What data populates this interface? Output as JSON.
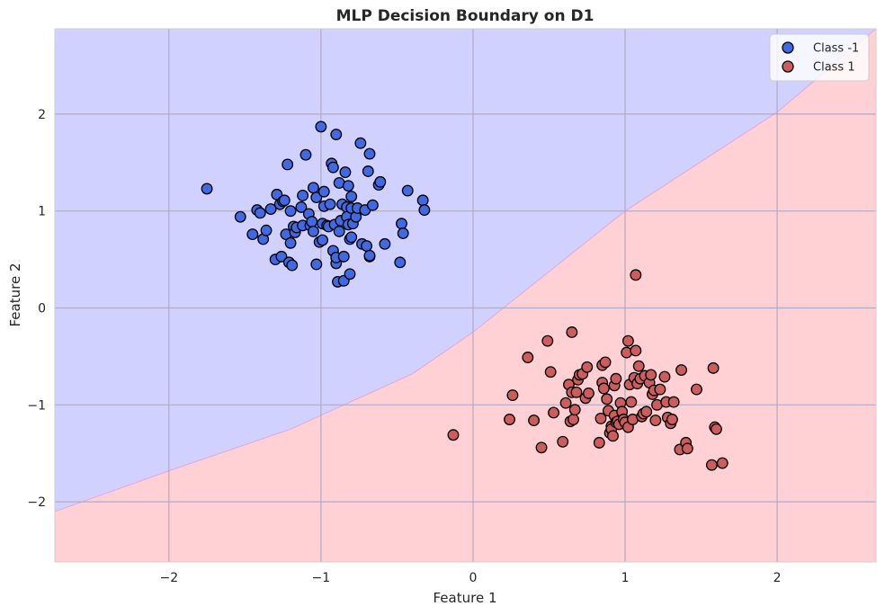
{
  "chart_data": {
    "type": "scatter",
    "title": "MLP Decision Boundary on D1",
    "xlabel": "Feature 1",
    "ylabel": "Feature 2",
    "xlim": [
      -2.75,
      2.65
    ],
    "ylim": [
      -2.62,
      2.88
    ],
    "xticks": [
      -2,
      -1,
      0,
      1,
      2
    ],
    "yticks": [
      -2,
      -1,
      0,
      1,
      2
    ],
    "xtick_labels": [
      "−2",
      "−1",
      "0",
      "1",
      "2"
    ],
    "ytick_labels": [
      "−2",
      "−1",
      "0",
      "1",
      "2"
    ],
    "grid": true,
    "legend_position": "top-right",
    "decision_regions": {
      "class_-1_color": "#d1d1ff",
      "class_1_color": "#ffd1d4",
      "boundary": [
        [
          -2.75,
          -2.1
        ],
        [
          -2.0,
          -1.68
        ],
        [
          -1.2,
          -1.25
        ],
        [
          -0.4,
          -0.68
        ],
        [
          0.0,
          -0.25
        ],
        [
          1.0,
          1.0
        ],
        [
          2.0,
          2.02
        ],
        [
          2.65,
          2.88
        ]
      ]
    },
    "series": [
      {
        "name": "Class -1",
        "color": "#4169e1",
        "points": [
          [
            -1.75,
            1.23
          ],
          [
            -1.53,
            0.94
          ],
          [
            -1.45,
            0.76
          ],
          [
            -1.42,
            1.01
          ],
          [
            -1.4,
            0.98
          ],
          [
            -1.38,
            0.71
          ],
          [
            -1.36,
            0.8
          ],
          [
            -1.33,
            1.02
          ],
          [
            -1.3,
            0.5
          ],
          [
            -1.29,
            1.17
          ],
          [
            -1.27,
            1.07
          ],
          [
            -1.26,
            0.53
          ],
          [
            -1.25,
            1.1
          ],
          [
            -1.24,
            1.11
          ],
          [
            -1.23,
            0.76
          ],
          [
            -1.22,
            1.48
          ],
          [
            -1.21,
            0.47
          ],
          [
            -1.2,
            0.67
          ],
          [
            -1.2,
            1.0
          ],
          [
            -1.19,
            0.44
          ],
          [
            -1.18,
            0.84
          ],
          [
            -1.17,
            0.78
          ],
          [
            -1.16,
            0.83
          ],
          [
            -1.13,
            1.04
          ],
          [
            -1.12,
            0.85
          ],
          [
            -1.12,
            1.16
          ],
          [
            -1.1,
            1.58
          ],
          [
            -1.08,
            0.97
          ],
          [
            -1.07,
            0.85
          ],
          [
            -1.06,
            0.89
          ],
          [
            -1.05,
            0.79
          ],
          [
            -1.05,
            1.24
          ],
          [
            -1.03,
            0.45
          ],
          [
            -1.03,
            1.14
          ],
          [
            -1.01,
            0.68
          ],
          [
            -1.0,
            1.87
          ],
          [
            -0.99,
            0.87
          ],
          [
            -0.99,
            0.7
          ],
          [
            -0.98,
            1.05
          ],
          [
            -0.98,
            1.2
          ],
          [
            -0.96,
            0.85
          ],
          [
            -0.95,
            0.84
          ],
          [
            -0.94,
            1.07
          ],
          [
            -0.93,
            1.49
          ],
          [
            -0.92,
            0.59
          ],
          [
            -0.92,
            1.45
          ],
          [
            -0.91,
            0.86
          ],
          [
            -0.9,
            1.79
          ],
          [
            -0.9,
            0.46
          ],
          [
            -0.9,
            0.52
          ],
          [
            -0.89,
            0.27
          ],
          [
            -0.88,
            1.29
          ],
          [
            -0.88,
            0.79
          ],
          [
            -0.87,
            0.9
          ],
          [
            -0.86,
            1.07
          ],
          [
            -0.85,
            0.28
          ],
          [
            -0.85,
            0.53
          ],
          [
            -0.84,
            1.4
          ],
          [
            -0.83,
            1.04
          ],
          [
            -0.83,
            0.94
          ],
          [
            -0.82,
            0.86
          ],
          [
            -0.82,
            1.26
          ],
          [
            -0.81,
            0.71
          ],
          [
            -0.81,
            0.35
          ],
          [
            -0.8,
            1.15
          ],
          [
            -0.8,
            0.73
          ],
          [
            -0.8,
            1.03
          ],
          [
            -0.79,
            0.87
          ],
          [
            -0.77,
            0.94
          ],
          [
            -0.76,
            1.03
          ],
          [
            -0.74,
            1.7
          ],
          [
            -0.73,
            0.66
          ],
          [
            -0.71,
            1.01
          ],
          [
            -0.7,
            0.64
          ],
          [
            -0.69,
            1.41
          ],
          [
            -0.68,
            1.59
          ],
          [
            -0.68,
            0.53
          ],
          [
            -0.68,
            0.54
          ],
          [
            -0.66,
            1.06
          ],
          [
            -0.62,
            1.27
          ],
          [
            -0.61,
            1.3
          ],
          [
            -0.58,
            0.66
          ],
          [
            -0.48,
            0.47
          ],
          [
            -0.47,
            0.87
          ],
          [
            -0.46,
            0.77
          ],
          [
            -0.43,
            1.21
          ],
          [
            -0.33,
            1.11
          ],
          [
            -0.32,
            1.01
          ]
        ]
      },
      {
        "name": "Class 1",
        "color": "#cd5c5c",
        "points": [
          [
            -0.13,
            -1.31
          ],
          [
            0.24,
            -1.15
          ],
          [
            0.26,
            -0.9
          ],
          [
            0.36,
            -0.51
          ],
          [
            0.4,
            -1.16
          ],
          [
            0.45,
            -1.44
          ],
          [
            0.49,
            -0.34
          ],
          [
            0.51,
            -0.66
          ],
          [
            0.53,
            -1.08
          ],
          [
            0.59,
            -1.38
          ],
          [
            0.61,
            -0.98
          ],
          [
            0.63,
            -0.79
          ],
          [
            0.64,
            -1.17
          ],
          [
            0.65,
            -0.25
          ],
          [
            0.65,
            -0.87
          ],
          [
            0.66,
            -1.15
          ],
          [
            0.67,
            -1.05
          ],
          [
            0.68,
            -0.87
          ],
          [
            0.69,
            -0.74
          ],
          [
            0.7,
            -0.69
          ],
          [
            0.72,
            -0.68
          ],
          [
            0.74,
            -0.93
          ],
          [
            0.75,
            -0.61
          ],
          [
            0.76,
            -0.88
          ],
          [
            0.83,
            -1.39
          ],
          [
            0.84,
            -1.14
          ],
          [
            0.85,
            -0.59
          ],
          [
            0.85,
            -0.77
          ],
          [
            0.86,
            -0.83
          ],
          [
            0.87,
            -0.56
          ],
          [
            0.88,
            -0.94
          ],
          [
            0.89,
            -1.06
          ],
          [
            0.9,
            -1.29
          ],
          [
            0.91,
            -1.22
          ],
          [
            0.91,
            -1.25
          ],
          [
            0.92,
            -1.32
          ],
          [
            0.93,
            -0.8
          ],
          [
            0.93,
            -1.11
          ],
          [
            0.94,
            -1.18
          ],
          [
            0.94,
            -0.73
          ],
          [
            0.95,
            -1.17
          ],
          [
            0.96,
            -1.2
          ],
          [
            0.97,
            -0.98
          ],
          [
            0.98,
            -1.07
          ],
          [
            0.99,
            -1.15
          ],
          [
            1.0,
            -1.18
          ],
          [
            1.01,
            -0.46
          ],
          [
            1.02,
            -0.34
          ],
          [
            1.02,
            -1.23
          ],
          [
            1.03,
            -0.79
          ],
          [
            1.04,
            -0.97
          ],
          [
            1.05,
            -1.15
          ],
          [
            1.06,
            -0.72
          ],
          [
            1.07,
            -0.44
          ],
          [
            1.07,
            0.34
          ],
          [
            1.08,
            -0.78
          ],
          [
            1.09,
            -0.6
          ],
          [
            1.1,
            -0.73
          ],
          [
            1.11,
            -1.12
          ],
          [
            1.12,
            -1.09
          ],
          [
            1.13,
            -0.7
          ],
          [
            1.14,
            -1.07
          ],
          [
            1.16,
            -0.77
          ],
          [
            1.17,
            -0.69
          ],
          [
            1.18,
            -0.89
          ],
          [
            1.19,
            -0.85
          ],
          [
            1.2,
            -1.16
          ],
          [
            1.21,
            -1.0
          ],
          [
            1.23,
            -0.84
          ],
          [
            1.26,
            -0.71
          ],
          [
            1.27,
            -0.97
          ],
          [
            1.28,
            -1.13
          ],
          [
            1.3,
            -1.19
          ],
          [
            1.31,
            -1.15
          ],
          [
            1.32,
            -0.97
          ],
          [
            1.36,
            -1.46
          ],
          [
            1.37,
            -0.64
          ],
          [
            1.4,
            -1.39
          ],
          [
            1.41,
            -1.45
          ],
          [
            1.47,
            -0.84
          ],
          [
            1.57,
            -1.62
          ],
          [
            1.58,
            -0.62
          ],
          [
            1.59,
            -1.23
          ],
          [
            1.6,
            -1.25
          ],
          [
            1.64,
            -1.6
          ]
        ]
      }
    ]
  }
}
